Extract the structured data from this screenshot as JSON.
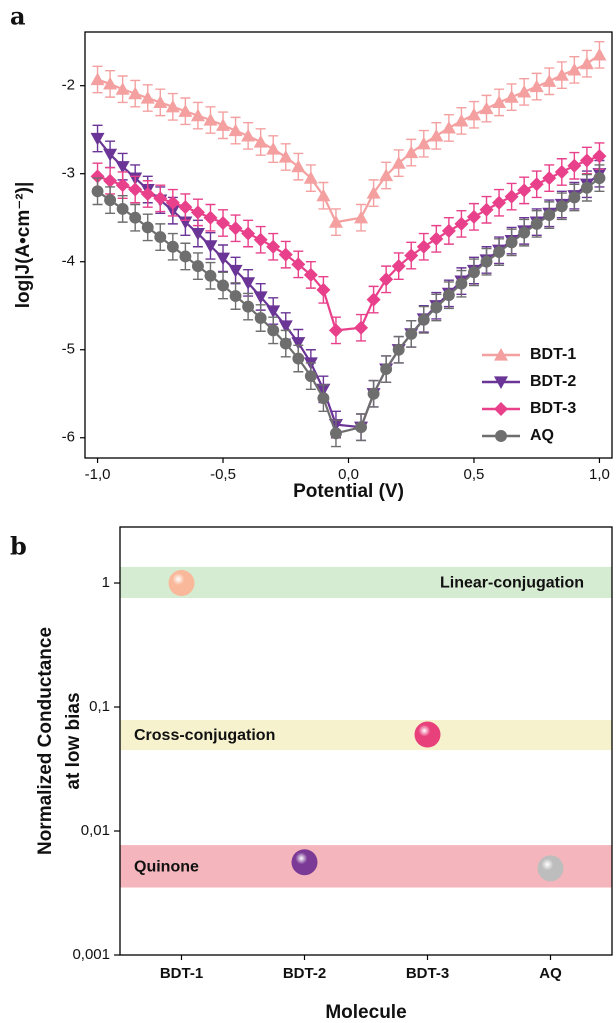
{
  "chart_data": [
    {
      "type": "line",
      "panel_label": "a",
      "x_label": "Potential (V)",
      "y_label": "log|J(A•cm⁻²)|",
      "xlim": [
        -1.05,
        1.05
      ],
      "xticks": [
        {
          "value": -1,
          "label": "-1,0"
        },
        {
          "value": -0.5,
          "label": "-0,5"
        },
        {
          "value": 0,
          "label": "0,0"
        },
        {
          "value": 0.5,
          "label": "0,5"
        },
        {
          "value": 1,
          "label": "1,0"
        }
      ],
      "ylim": [
        -6.23,
        -1.39
      ],
      "yticks": [
        -6,
        -5,
        -4,
        -3,
        -2
      ],
      "legend": "lower right",
      "x": [
        -1.0,
        -0.95,
        -0.9,
        -0.85,
        -0.8,
        -0.75,
        -0.7,
        -0.65,
        -0.6,
        -0.55,
        -0.5,
        -0.45,
        -0.4,
        -0.35,
        -0.3,
        -0.25,
        -0.2,
        -0.15,
        -0.1,
        -0.05,
        0.05,
        0.1,
        0.15,
        0.2,
        0.25,
        0.3,
        0.35,
        0.4,
        0.45,
        0.5,
        0.55,
        0.6,
        0.65,
        0.7,
        0.75,
        0.8,
        0.85,
        0.9,
        0.95,
        1.0
      ],
      "series": [
        {
          "name": "BDT-1",
          "color": "#f4a0a0",
          "marker": "triangle-up",
          "error": 0.15,
          "values": [
            -1.93,
            -1.98,
            -2.04,
            -2.09,
            -2.14,
            -2.19,
            -2.24,
            -2.29,
            -2.34,
            -2.39,
            -2.45,
            -2.51,
            -2.57,
            -2.64,
            -2.72,
            -2.81,
            -2.92,
            -3.05,
            -3.25,
            -3.55,
            -3.5,
            -3.22,
            -3.02,
            -2.88,
            -2.76,
            -2.66,
            -2.57,
            -2.48,
            -2.4,
            -2.33,
            -2.26,
            -2.19,
            -2.13,
            -2.07,
            -2.01,
            -1.95,
            -1.88,
            -1.82,
            -1.75,
            -1.65
          ]
        },
        {
          "name": "BDT-2",
          "color": "#6a3596",
          "marker": "triangle-down",
          "error": 0.15,
          "values": [
            -2.6,
            -2.78,
            -2.92,
            -3.05,
            -3.18,
            -3.3,
            -3.42,
            -3.55,
            -3.68,
            -3.82,
            -3.96,
            -4.1,
            -4.24,
            -4.4,
            -4.56,
            -4.73,
            -4.92,
            -5.15,
            -5.45,
            -5.85,
            -5.88,
            -5.5,
            -5.22,
            -5.0,
            -4.82,
            -4.65,
            -4.5,
            -4.36,
            -4.22,
            -4.1,
            -3.98,
            -3.87,
            -3.76,
            -3.65,
            -3.55,
            -3.45,
            -3.35,
            -3.25,
            -3.12,
            -3.0
          ]
        },
        {
          "name": "BDT-3",
          "color": "#e8408a",
          "marker": "diamond",
          "error": 0.15,
          "values": [
            -3.03,
            -3.08,
            -3.13,
            -3.18,
            -3.23,
            -3.28,
            -3.33,
            -3.38,
            -3.44,
            -3.5,
            -3.56,
            -3.62,
            -3.68,
            -3.75,
            -3.83,
            -3.92,
            -4.03,
            -4.15,
            -4.32,
            -4.78,
            -4.75,
            -4.43,
            -4.2,
            -4.05,
            -3.93,
            -3.83,
            -3.74,
            -3.65,
            -3.57,
            -3.49,
            -3.41,
            -3.33,
            -3.26,
            -3.19,
            -3.12,
            -3.05,
            -2.98,
            -2.91,
            -2.85,
            -2.8
          ]
        },
        {
          "name": "AQ",
          "color": "#6e6e6e",
          "marker": "circle",
          "error": 0.15,
          "values": [
            -3.2,
            -3.3,
            -3.4,
            -3.5,
            -3.61,
            -3.72,
            -3.83,
            -3.94,
            -4.05,
            -4.16,
            -4.27,
            -4.39,
            -4.51,
            -4.64,
            -4.78,
            -4.93,
            -5.1,
            -5.3,
            -5.55,
            -5.95,
            -5.88,
            -5.5,
            -5.22,
            -5.0,
            -4.82,
            -4.66,
            -4.52,
            -4.38,
            -4.25,
            -4.12,
            -4.0,
            -3.89,
            -3.78,
            -3.67,
            -3.57,
            -3.47,
            -3.37,
            -3.27,
            -3.16,
            -3.05
          ]
        }
      ]
    },
    {
      "type": "scatter",
      "panel_label": "b",
      "log_y": true,
      "x_label": "Molecule",
      "y_label": [
        "Normalized Conductance",
        "at low bias"
      ],
      "categories": [
        "BDT-1",
        "BDT-2",
        "BDT-3",
        "AQ"
      ],
      "values": [
        1.0,
        0.0056,
        0.06,
        0.005
      ],
      "colors": [
        "#f9b89a",
        "#7b3a96",
        "#e8407a",
        "#bdbdbd"
      ],
      "ylim": [
        0.001,
        2.83
      ],
      "yticks": [
        {
          "value": 0.001,
          "label": "0,001"
        },
        {
          "value": 0.01,
          "label": "0,01"
        },
        {
          "value": 0.1,
          "label": "0,1"
        },
        1
      ],
      "bands": [
        {
          "label": "Linear-conjugation",
          "range": [
            0.757,
            1.35
          ],
          "color": "#d6ecd2"
        },
        {
          "label": "Cross-conjugation",
          "range": [
            0.045,
            0.0785
          ],
          "color": "#f6f2cd"
        },
        {
          "label": "Quinone",
          "range": [
            0.0035,
            0.0077
          ],
          "color": "#f4b6bc"
        }
      ]
    }
  ]
}
